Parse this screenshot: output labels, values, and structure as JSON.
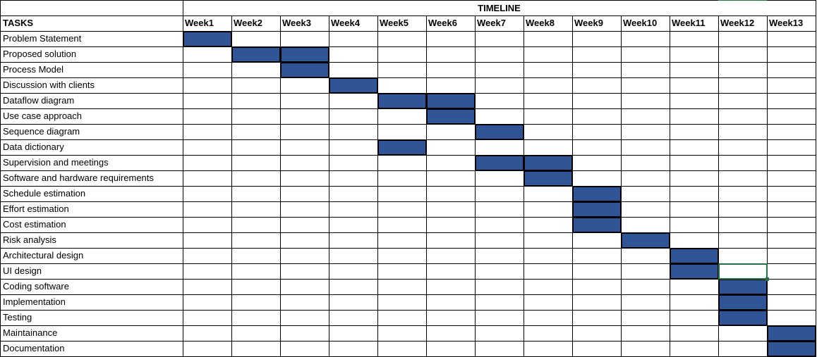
{
  "timeline_title": "TIMELINE",
  "tasks_header": "TASKS",
  "weeks": [
    "Week1",
    "Week2",
    "Week3",
    "Week4",
    "Week5",
    "Week6",
    "Week7",
    "Week8",
    "Week9",
    "Week10",
    "Week11",
    "Week12",
    "Week13"
  ],
  "tasks": [
    {
      "name": "Problem Statement",
      "weeks": [
        1
      ]
    },
    {
      "name": "Proposed solution",
      "weeks": [
        2,
        3
      ]
    },
    {
      "name": "Process Model",
      "weeks": [
        3
      ]
    },
    {
      "name": "Discussion with clients",
      "weeks": [
        4
      ]
    },
    {
      "name": "Dataflow diagram",
      "weeks": [
        5,
        6
      ]
    },
    {
      "name": "Use case approach",
      "weeks": [
        6
      ]
    },
    {
      "name": "Sequence diagram",
      "weeks": [
        7
      ]
    },
    {
      "name": "Data dictionary",
      "weeks": [
        5
      ]
    },
    {
      "name": "Supervision and meetings",
      "weeks": [
        7,
        8
      ]
    },
    {
      "name": "Software and hardware requirements",
      "weeks": [
        8
      ]
    },
    {
      "name": "Schedule estimation",
      "weeks": [
        9
      ]
    },
    {
      "name": "Effort estimation",
      "weeks": [
        9
      ]
    },
    {
      "name": "Cost estimation",
      "weeks": [
        9
      ]
    },
    {
      "name": "Risk analysis",
      "weeks": [
        10
      ]
    },
    {
      "name": "Architectural design",
      "weeks": [
        11
      ]
    },
    {
      "name": "UI design",
      "weeks": [
        11
      ]
    },
    {
      "name": "Coding software",
      "weeks": [
        12
      ]
    },
    {
      "name": "Implementation",
      "weeks": [
        12
      ]
    },
    {
      "name": "Testing",
      "weeks": [
        12
      ]
    },
    {
      "name": "Maintainance",
      "weeks": [
        13
      ]
    },
    {
      "name": "Documentation",
      "weeks": [
        13
      ]
    }
  ],
  "selected_cell": {
    "task_index": 15,
    "week": 12
  },
  "colors": {
    "bar_fill": "#2f5597",
    "bar_border": "#000000",
    "gridline": "#d4d4d4",
    "selection": "#217346"
  }
}
